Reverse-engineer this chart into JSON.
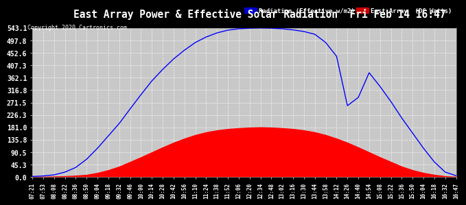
{
  "title": "East Array Power & Effective Solar Radiation  Fri Feb 14 16:47",
  "copyright": "Copyright 2020 Cartronics.com",
  "legend_radiation": "Radiation (Effective w/m2)",
  "legend_east": "East Array  (DC Watts)",
  "fig_bg_color": "#000000",
  "plot_bg_color": "#c8c8c8",
  "grid_color": "#ffffff",
  "title_color": "#ffffff",
  "tick_color": "#ffffff",
  "radiation_color": "#0000ff",
  "east_color": "#ff0000",
  "east_fill_color": "#ff0000",
  "legend_radiation_bg": "#0000cc",
  "legend_east_bg": "#cc0000",
  "ymax": 543.1,
  "ymin": 0.0,
  "yticks": [
    0.0,
    45.3,
    90.5,
    135.8,
    181.0,
    226.3,
    271.5,
    316.8,
    362.1,
    407.3,
    452.6,
    497.8,
    543.1
  ],
  "xtick_labels": [
    "07:21",
    "07:53",
    "08:08",
    "08:22",
    "08:36",
    "08:50",
    "09:04",
    "09:18",
    "09:32",
    "09:46",
    "10:00",
    "10:14",
    "10:28",
    "10:42",
    "10:56",
    "11:10",
    "11:24",
    "11:38",
    "11:52",
    "12:06",
    "12:20",
    "12:34",
    "12:48",
    "13:02",
    "13:16",
    "13:30",
    "13:44",
    "13:58",
    "14:12",
    "14:26",
    "14:40",
    "14:54",
    "15:08",
    "15:22",
    "15:36",
    "15:50",
    "16:04",
    "16:18",
    "16:32",
    "16:47"
  ],
  "n_points": 40,
  "radiation_values": [
    2,
    4,
    8,
    18,
    35,
    65,
    105,
    150,
    195,
    248,
    300,
    350,
    392,
    430,
    462,
    490,
    510,
    525,
    535,
    540,
    542,
    543,
    542,
    540,
    536,
    530,
    520,
    490,
    440,
    260,
    290,
    380,
    330,
    275,
    215,
    160,
    105,
    55,
    18,
    5
  ],
  "east_values": [
    1,
    1,
    2,
    3,
    5,
    8,
    15,
    25,
    38,
    55,
    72,
    90,
    108,
    125,
    140,
    153,
    163,
    170,
    175,
    178,
    180,
    181,
    180,
    178,
    175,
    170,
    163,
    153,
    140,
    125,
    108,
    90,
    72,
    55,
    38,
    25,
    15,
    8,
    3,
    1
  ]
}
